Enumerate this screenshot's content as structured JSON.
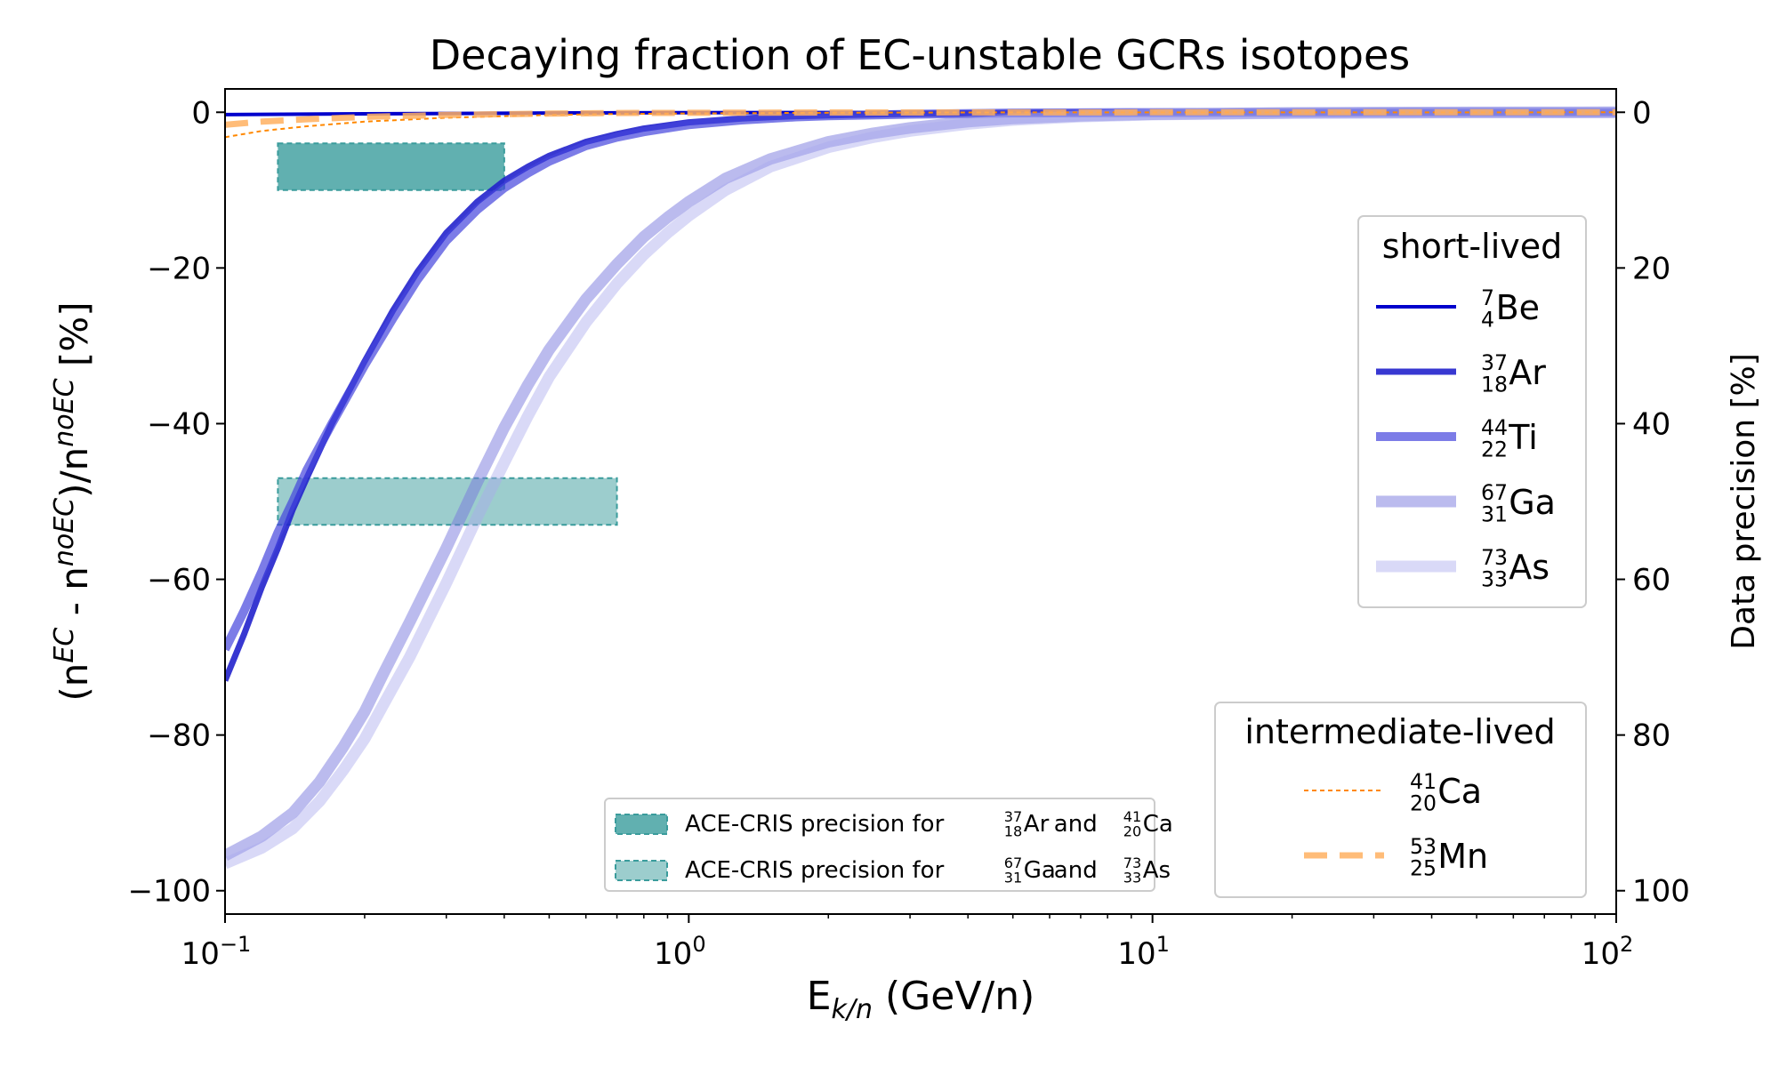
{
  "chart_data": {
    "type": "line",
    "title": "Decaying fraction of EC-unstable GCRs isotopes",
    "xlabel": {
      "base": "E",
      "sub": "k/n",
      "rest": " (GeV/n)"
    },
    "ylabel_left": {
      "parts": [
        "(n",
        "EC",
        " - n",
        "noEC",
        ")/n",
        "noEC",
        " [%]"
      ]
    },
    "ylabel_right": "Data precision [%]",
    "x_scale": "log",
    "xlim": [
      0.1,
      100
    ],
    "ylim": [
      -103,
      3
    ],
    "right_ylim": [
      103,
      -3
    ],
    "grid": false,
    "x_ticks": [
      {
        "value": 0.1,
        "base": "10",
        "exp": "−1"
      },
      {
        "value": 1,
        "base": "10",
        "exp": "0"
      },
      {
        "value": 10,
        "base": "10",
        "exp": "1"
      },
      {
        "value": 100,
        "base": "10",
        "exp": "2"
      }
    ],
    "y_ticks": [
      {
        "value": 0,
        "label": "0"
      },
      {
        "value": -20,
        "label": "−20"
      },
      {
        "value": -40,
        "label": "−40"
      },
      {
        "value": -60,
        "label": "−60"
      },
      {
        "value": -80,
        "label": "−80"
      },
      {
        "value": -100,
        "label": "−100"
      }
    ],
    "right_ticks": [
      {
        "value": 0,
        "label": "0"
      },
      {
        "value": 20,
        "label": "20"
      },
      {
        "value": 40,
        "label": "40"
      },
      {
        "value": 60,
        "label": "60"
      },
      {
        "value": 80,
        "label": "80"
      },
      {
        "value": 100,
        "label": "100"
      }
    ],
    "precision_boxes": [
      {
        "label_parts": [
          "ACE-CRIS precision for ",
          "37|18|Ar",
          " and ",
          "41|20|Ca"
        ],
        "x_range": [
          0.13,
          0.4
        ],
        "precision_range": [
          4,
          10
        ],
        "color": "#3a9c9c",
        "opacity": 0.8
      },
      {
        "label_parts": [
          "ACE-CRIS precision for ",
          "67|31|Ga",
          " and ",
          "73|33|As"
        ],
        "x_range": [
          0.13,
          0.7
        ],
        "precision_range": [
          47,
          53
        ],
        "color": "#3a9c9c",
        "opacity": 0.5
      }
    ],
    "series": [
      {
        "name": "7|4|Be",
        "group": "short-lived",
        "color": "#0000cc",
        "opacity": 1.0,
        "width": 4,
        "dash": "",
        "x": [
          0.1,
          0.2,
          0.5,
          1,
          10,
          100
        ],
        "y": [
          -0.3,
          -0.2,
          -0.1,
          -0.05,
          0,
          0
        ]
      },
      {
        "name": "37|18|Ar",
        "group": "short-lived",
        "color": "#2222cc",
        "opacity": 0.9,
        "width": 7,
        "dash": "",
        "x": [
          0.1,
          0.11,
          0.12,
          0.13,
          0.14,
          0.15,
          0.17,
          0.2,
          0.23,
          0.26,
          0.3,
          0.35,
          0.4,
          0.45,
          0.5,
          0.6,
          0.7,
          0.8,
          1.0,
          1.3,
          1.7,
          2,
          3,
          5,
          10,
          30,
          100
        ],
        "y": [
          -73,
          -67,
          -61,
          -56,
          -51,
          -47,
          -40,
          -32,
          -25.5,
          -20.5,
          -15.5,
          -11.5,
          -8.8,
          -7,
          -5.6,
          -3.8,
          -2.8,
          -2.1,
          -1.3,
          -0.8,
          -0.5,
          -0.4,
          -0.2,
          -0.08,
          -0.03,
          0,
          0
        ]
      },
      {
        "name": "44|22|Ti",
        "group": "short-lived",
        "color": "#4444dd",
        "opacity": 0.7,
        "width": 10,
        "dash": "",
        "x": [
          0.1,
          0.11,
          0.12,
          0.13,
          0.14,
          0.15,
          0.17,
          0.2,
          0.23,
          0.26,
          0.3,
          0.35,
          0.4,
          0.45,
          0.5,
          0.6,
          0.7,
          0.8,
          1.0,
          1.3,
          1.7,
          2,
          3,
          5,
          10,
          30,
          100
        ],
        "y": [
          -69,
          -64,
          -59,
          -54,
          -50,
          -46,
          -40,
          -32.5,
          -26.5,
          -21.5,
          -16.5,
          -12.5,
          -9.7,
          -7.8,
          -6.3,
          -4.3,
          -3.2,
          -2.5,
          -1.6,
          -1,
          -0.6,
          -0.45,
          -0.25,
          -0.1,
          -0.04,
          0,
          0
        ]
      },
      {
        "name": "67|31|Ga",
        "group": "short-lived",
        "color": "#7777dd",
        "opacity": 0.5,
        "width": 13,
        "dash": "",
        "x": [
          0.1,
          0.12,
          0.14,
          0.16,
          0.18,
          0.2,
          0.22,
          0.25,
          0.3,
          0.35,
          0.4,
          0.45,
          0.5,
          0.6,
          0.7,
          0.8,
          0.9,
          1.0,
          1.2,
          1.5,
          2,
          2.5,
          3,
          4,
          5,
          7,
          10,
          20,
          50,
          100
        ],
        "y": [
          -95.5,
          -93,
          -90,
          -86,
          -81.5,
          -77,
          -72,
          -65.5,
          -56,
          -47.5,
          -40.5,
          -35,
          -30.5,
          -24,
          -19.5,
          -16,
          -13.5,
          -11.5,
          -8.5,
          -6,
          -3.8,
          -2.7,
          -2,
          -1.2,
          -0.8,
          -0.45,
          -0.25,
          -0.08,
          -0.02,
          0
        ]
      },
      {
        "name": "73|33|As",
        "group": "short-lived",
        "color": "#aaaaee",
        "opacity": 0.45,
        "width": 13,
        "dash": "",
        "x": [
          0.1,
          0.12,
          0.14,
          0.16,
          0.18,
          0.2,
          0.22,
          0.25,
          0.3,
          0.35,
          0.4,
          0.45,
          0.5,
          0.6,
          0.7,
          0.8,
          0.9,
          1.0,
          1.2,
          1.5,
          2,
          2.5,
          3,
          4,
          5,
          7,
          10,
          20,
          50,
          100
        ],
        "y": [
          -96.5,
          -94.5,
          -92,
          -88.5,
          -84.5,
          -80.5,
          -76,
          -70,
          -60.5,
          -52,
          -45,
          -39,
          -34,
          -27,
          -22,
          -18.3,
          -15.5,
          -13.3,
          -10,
          -7,
          -4.5,
          -3.2,
          -2.4,
          -1.5,
          -1,
          -0.55,
          -0.3,
          -0.1,
          -0.03,
          0
        ]
      },
      {
        "name": "41|20|Ca",
        "group": "intermediate-lived",
        "color": "#ff8800",
        "opacity": 1.0,
        "width": 2,
        "dash": "5,4",
        "x": [
          0.1,
          0.12,
          0.15,
          0.2,
          0.3,
          0.5,
          0.7,
          1,
          2,
          5,
          10,
          100
        ],
        "y": [
          -3.2,
          -2.4,
          -1.8,
          -1.2,
          -0.7,
          -0.35,
          -0.22,
          -0.15,
          -0.06,
          -0.02,
          -0.01,
          0
        ]
      },
      {
        "name": "53|25|Mn",
        "group": "intermediate-lived",
        "color": "#ffb060",
        "opacity": 0.85,
        "width": 7,
        "dash": "26,14",
        "x": [
          0.1,
          0.12,
          0.15,
          0.2,
          0.3,
          0.5,
          0.7,
          1,
          2,
          5,
          10,
          100
        ],
        "y": [
          -1.6,
          -1.2,
          -0.9,
          -0.6,
          -0.35,
          -0.17,
          -0.1,
          -0.07,
          -0.03,
          -0.01,
          0,
          0
        ]
      }
    ],
    "legend_groups": [
      {
        "title": "short-lived",
        "position": "right"
      },
      {
        "title": "intermediate-lived",
        "position": "bottom-right"
      }
    ]
  }
}
